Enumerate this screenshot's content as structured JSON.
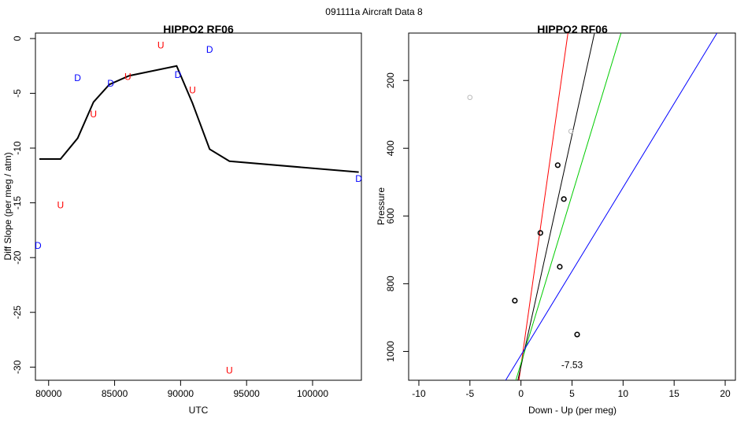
{
  "figure_title": "091111a   Aircraft Data 8",
  "chart_data": [
    {
      "type": "line",
      "title": "HIPPO2 RF06",
      "xlabel": "UTC",
      "ylabel": "Diff Slope (per meg / atm)",
      "xlim": [
        79000,
        103700
      ],
      "ylim": [
        -31.2,
        0.5
      ],
      "xticks": [
        80000,
        85000,
        90000,
        95000,
        100000
      ],
      "xtick_labels": [
        "80000",
        "85000",
        "90000",
        "95000",
        "100000"
      ],
      "yticks": [
        0,
        -5,
        -10,
        -15,
        -20,
        -25,
        -30
      ],
      "ytick_labels": [
        "0",
        "-5",
        "-10",
        "-15",
        "-20",
        "-25",
        "-30"
      ],
      "grid": false,
      "series": [
        {
          "type": "line",
          "color": "#000000",
          "x": [
            79300,
            80900,
            82200,
            83400,
            84600,
            86100,
            89700,
            90900,
            92200,
            93700,
            103500
          ],
          "y": [
            -11.0,
            -11.0,
            -9.1,
            -5.8,
            -4.2,
            -3.4,
            -2.5,
            -5.9,
            -10.1,
            -11.2,
            -12.2
          ]
        },
        {
          "type": "text-markers",
          "color": "#0000ff",
          "glyph": "D",
          "x": [
            79200,
            82200,
            84700,
            89800,
            92200,
            103500
          ],
          "y": [
            -18.9,
            -3.6,
            -4.1,
            -3.3,
            -1.0,
            -12.8
          ]
        },
        {
          "type": "text-markers",
          "color": "#ff0000",
          "glyph": "U",
          "x": [
            80900,
            83400,
            86000,
            88500,
            90900,
            93700
          ],
          "y": [
            -15.2,
            -6.9,
            -3.5,
            -0.6,
            -4.7,
            -30.3
          ]
        }
      ]
    },
    {
      "type": "scatter",
      "title": "HIPPO2 RF06",
      "xlabel": "Down - Up (per meg)",
      "ylabel": "Pressure",
      "xlim": [
        -11,
        21
      ],
      "ylim": [
        1085,
        60
      ],
      "y_axis_inverted": true,
      "xticks": [
        -10,
        -5,
        0,
        5,
        10,
        15,
        20
      ],
      "xtick_labels": [
        "-10",
        "-5",
        "0",
        "5",
        "10",
        "15",
        "20"
      ],
      "yticks": [
        200,
        400,
        600,
        800,
        1000
      ],
      "ytick_labels": [
        "200",
        "400",
        "600",
        "800",
        "1000"
      ],
      "grid": false,
      "points": {
        "color": "#000000",
        "x": [
          3.6,
          4.2,
          1.9,
          3.8,
          -0.6,
          5.5
        ],
        "y": [
          450,
          550,
          650,
          750,
          850,
          950
        ]
      },
      "faint_points": {
        "color": "#bbbbbb",
        "x": [
          -5.0,
          4.9
        ],
        "y": [
          250,
          350
        ]
      },
      "lines": [
        {
          "color": "#ff0000",
          "x": [
            -0.2,
            4.6
          ],
          "y": [
            1085,
            60
          ]
        },
        {
          "color": "#000000",
          "x": [
            -0.3,
            7.2
          ],
          "y": [
            1085,
            60
          ]
        },
        {
          "color": "#00cc00",
          "x": [
            -0.5,
            9.8
          ],
          "y": [
            1085,
            60
          ]
        },
        {
          "color": "#0000ff",
          "x": [
            -1.5,
            19.2
          ],
          "y": [
            1085,
            60
          ]
        }
      ],
      "annotation": {
        "text": "-7.53",
        "x": 5.0,
        "y": 1040
      }
    }
  ]
}
